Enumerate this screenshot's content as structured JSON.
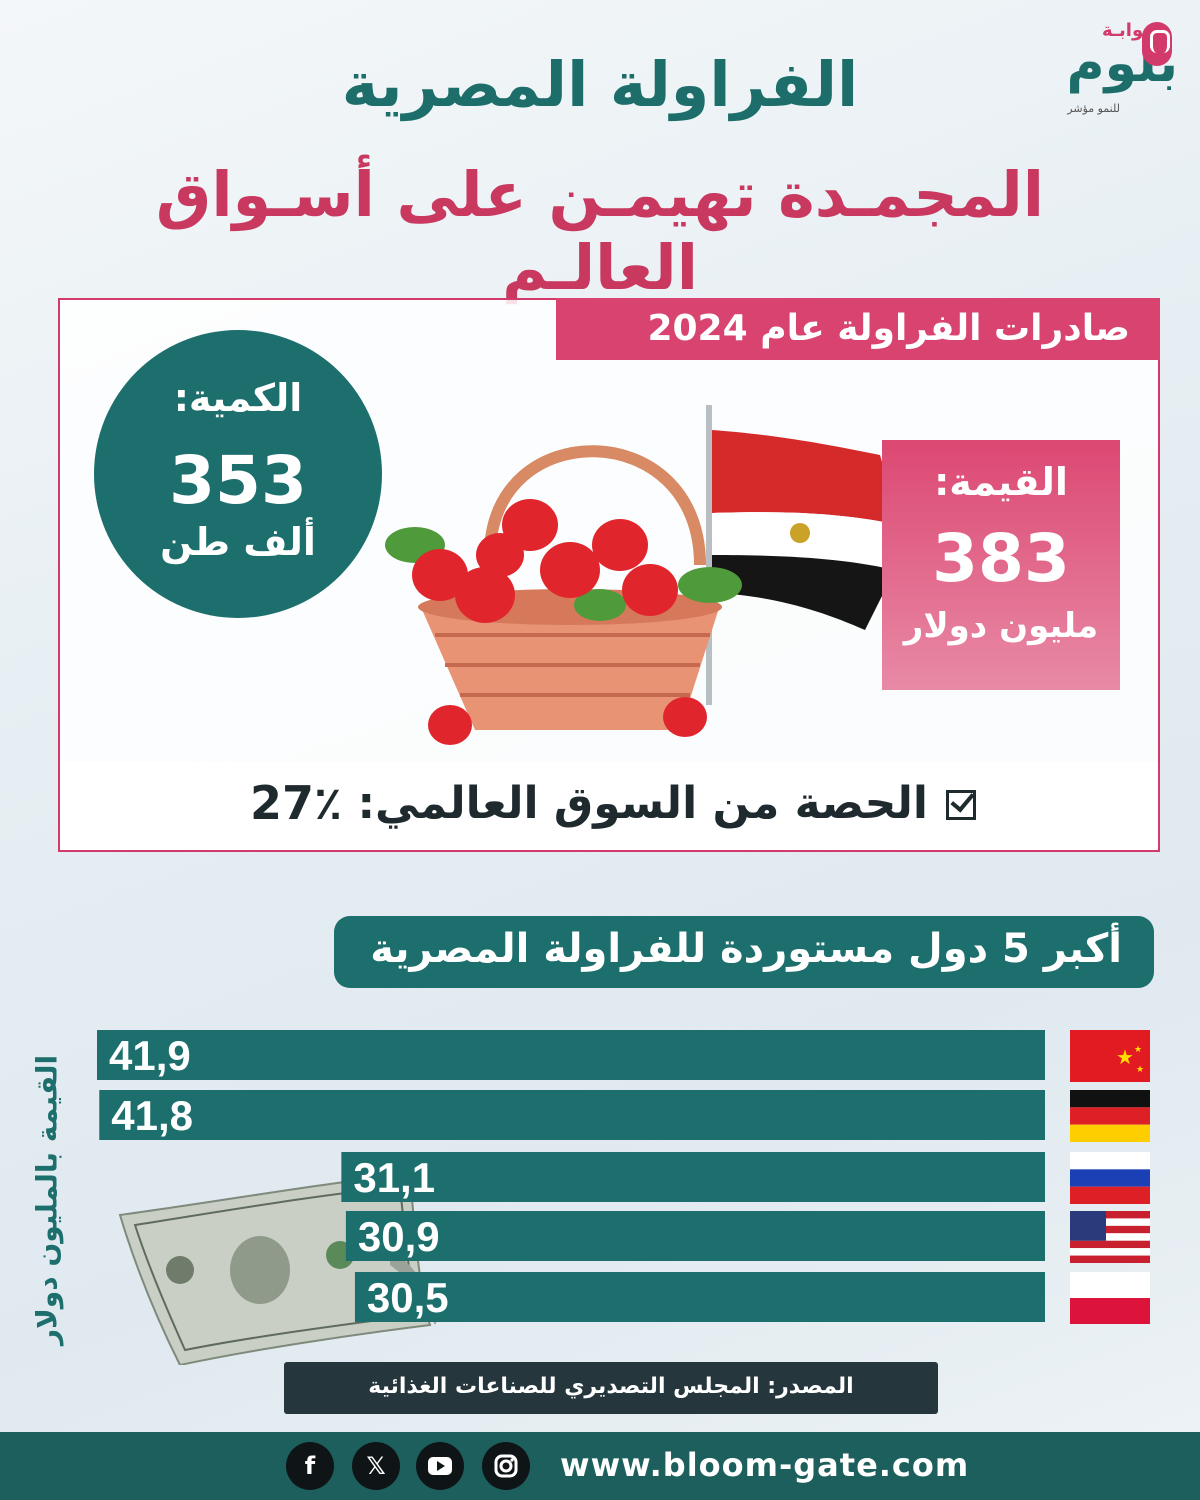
{
  "logo": {
    "small": "بوابـة",
    "big": "بلوم",
    "tagline": "للنمو مؤشر"
  },
  "title": {
    "line1": "الفراولة المصرية",
    "line2": "المجمـدة تهيمـن على أسـواق العالـم"
  },
  "summary": {
    "header": "صادرات الفراولة عام 2024",
    "quantity": {
      "label": "الكمية:",
      "value": "353",
      "unit": "ألف طن"
    },
    "value": {
      "label": "القيمة:",
      "value": "383",
      "unit": "مليون دولار"
    },
    "share": {
      "label": "الحصة من السوق العالمي:",
      "value": "27٪"
    }
  },
  "top5": {
    "header": "أكبر 5 دول مستوردة للفراولة المصرية"
  },
  "colors": {
    "teal": "#1c6f6c",
    "pink": "#d8436f",
    "dark": "#26363d"
  },
  "chart_data": {
    "type": "bar",
    "orientation": "horizontal",
    "categories": [
      "China",
      "Germany",
      "Russia",
      "United States",
      "Poland"
    ],
    "values": [
      41.9,
      41.8,
      31.1,
      30.9,
      30.5
    ],
    "value_labels": [
      "41,9",
      "41,8",
      "31,1",
      "30,9",
      "30,5"
    ],
    "ylabel": "القيمة بالمليون دولار",
    "grid": false
  },
  "source": "المصدر: المجلس التصديري للصناعات الغذائية",
  "footer": {
    "website": "www.bloom-gate.com",
    "social": [
      "facebook-icon",
      "x-icon",
      "youtube-icon",
      "instagram-icon"
    ]
  }
}
